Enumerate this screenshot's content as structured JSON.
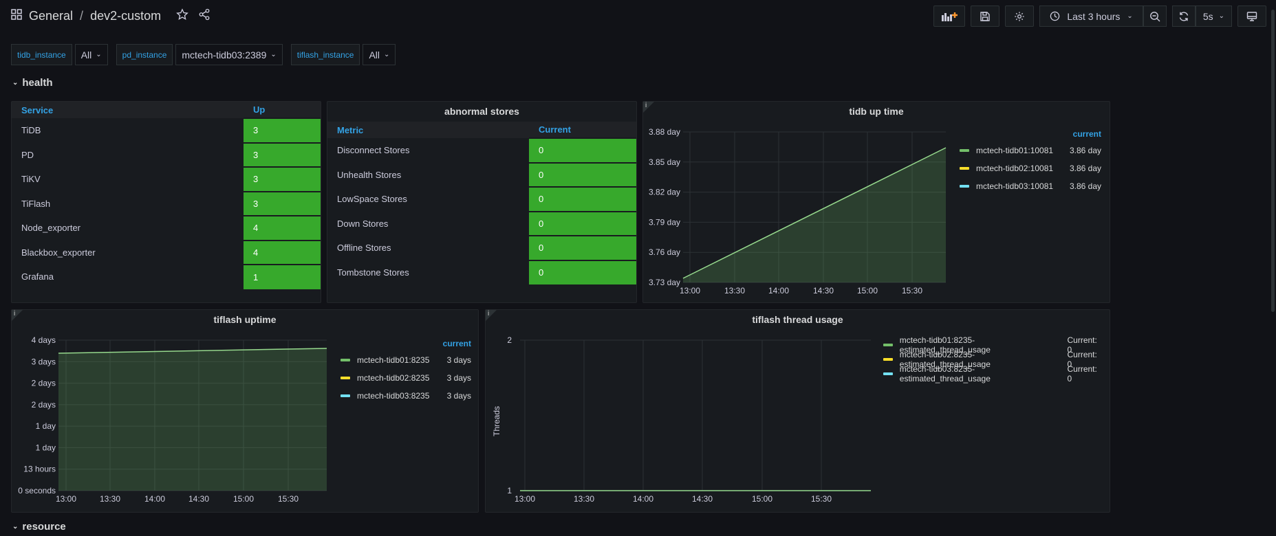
{
  "breadcrumb": {
    "folder": "General",
    "separator": "/",
    "dashboard": "dev2-custom"
  },
  "toolbar": {
    "time_range": "Last 3 hours",
    "refresh": "5s"
  },
  "variables": [
    {
      "label": "tidb_instance",
      "value": "All"
    },
    {
      "label": "pd_instance",
      "value": "mctech-tidb03:2389"
    },
    {
      "label": "tiflash_instance",
      "value": "All"
    }
  ],
  "rows": {
    "health": "health",
    "resource": "resource"
  },
  "services": {
    "headers": [
      "Service",
      "Up"
    ],
    "rows": [
      [
        "TiDB",
        "3"
      ],
      [
        "PD",
        "3"
      ],
      [
        "TiKV",
        "3"
      ],
      [
        "TiFlash",
        "3"
      ],
      [
        "Node_exporter",
        "4"
      ],
      [
        "Blackbox_exporter",
        "4"
      ],
      [
        "Grafana",
        "1"
      ]
    ]
  },
  "abnormal": {
    "title": "abnormal stores",
    "headers": [
      "Metric",
      "Current"
    ],
    "rows": [
      [
        "Disconnect Stores",
        "0"
      ],
      [
        "Unhealth Stores",
        "0"
      ],
      [
        "LowSpace Stores",
        "0"
      ],
      [
        "Down Stores",
        "0"
      ],
      [
        "Offline Stores",
        "0"
      ],
      [
        "Tombstone Stores",
        "0"
      ]
    ]
  },
  "tidb_uptime": {
    "title": "tidb up time",
    "legend_header": "current",
    "legend": [
      {
        "name": "mctech-tidb01:10081",
        "value": "3.86 day",
        "color": "#73bf69"
      },
      {
        "name": "mctech-tidb02:10081",
        "value": "3.86 day",
        "color": "#fade2a"
      },
      {
        "name": "mctech-tidb03:10081",
        "value": "3.86 day",
        "color": "#5794f2"
      }
    ],
    "yticks": [
      "3.88 day",
      "3.85 day",
      "3.82 day",
      "3.79 day",
      "3.76 day",
      "3.73 day"
    ],
    "xticks": [
      "13:00",
      "13:30",
      "14:00",
      "14:30",
      "15:00",
      "15:30"
    ]
  },
  "tiflash_uptime": {
    "title": "tiflash uptime",
    "legend_header": "current",
    "legend": [
      {
        "name": "mctech-tidb01:8235",
        "value": "3 days",
        "color": "#73bf69"
      },
      {
        "name": "mctech-tidb02:8235",
        "value": "3 days",
        "color": "#fade2a"
      },
      {
        "name": "mctech-tidb03:8235",
        "value": "3 days",
        "color": "#5794f2"
      }
    ],
    "yticks": [
      "4 days",
      "3 days",
      "2 days",
      "2 days",
      "1 day",
      "1 day",
      "13 hours",
      "0 seconds"
    ],
    "xticks": [
      "13:00",
      "13:30",
      "14:00",
      "14:30",
      "15:00",
      "15:30"
    ]
  },
  "tiflash_threads": {
    "title": "tiflash thread usage",
    "ylabel": "Threads",
    "yticks": [
      "2",
      "1"
    ],
    "xticks": [
      "13:00",
      "13:30",
      "14:00",
      "14:30",
      "15:00",
      "15:30"
    ],
    "legend": [
      {
        "name": "mctech-tidb01:8235-estimated_thread_usage",
        "value": "Current: 0",
        "color": "#73bf69"
      },
      {
        "name": "mctech-tidb02:8235-estimated_thread_usage",
        "value": "Current: 0",
        "color": "#fade2a"
      },
      {
        "name": "mctech-tidb03:8235-estimated_thread_usage",
        "value": "Current: 0",
        "color": "#5794f2"
      }
    ]
  }
}
